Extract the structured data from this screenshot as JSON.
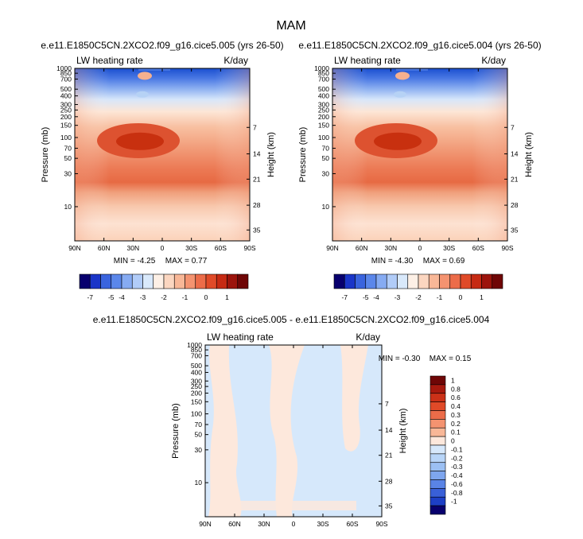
{
  "chart_data": {
    "type": "heatmap",
    "title": "MAM",
    "x_ticks": [
      "90N",
      "60N",
      "30N",
      "0",
      "30S",
      "60S",
      "90S"
    ],
    "y_ticks": [
      "10",
      "30",
      "50",
      "70",
      "100",
      "150",
      "200",
      "250",
      "300",
      "400",
      "500",
      "700",
      "850",
      "1000"
    ],
    "y_right_ticks": [
      "35",
      "28",
      "21",
      "14",
      "7"
    ],
    "y_label": "Pressure (mb)",
    "y_right_label": "Height (km)",
    "panels": [
      {
        "subtitle": "e.e11.E1850C5CN.2XCO2.f09_g16.cice5.005 (yrs 26-50)",
        "field_label": "LW heating rate",
        "units": "K/day",
        "min_label": "MIN = -4.25",
        "max_label": "MAX =  0.77",
        "min": -4.25,
        "max": 0.77
      },
      {
        "subtitle": "e.e11.E1850C5CN.2XCO2.f09_g16.cice5.004 (yrs 26-50)",
        "field_label": "LW heating rate",
        "units": "K/day",
        "min_label": "MIN = -4.30",
        "max_label": "MAX =  0.69",
        "min": -4.3,
        "max": 0.69
      },
      {
        "subtitle": "e.e11.E1850C5CN.2XCO2.f09_g16.cice5.005 - e.e11.E1850C5CN.2XCO2.f09_g16.cice5.004",
        "field_label": "LW heating rate",
        "units": "K/day",
        "min_label": "MIN = -0.30",
        "max_label": "MAX =  0.15",
        "min": -0.3,
        "max": 0.15
      }
    ],
    "colorbar_top": {
      "tick_labels": [
        "-7",
        "-5",
        "-4",
        "-3",
        "-2",
        "-1",
        "0",
        "1"
      ],
      "colors": [
        "#08006e",
        "#1a35c8",
        "#3a64de",
        "#5b87ea",
        "#86abf2",
        "#b1ccf8",
        "#d9e9fb",
        "#fdf0e6",
        "#fbd6c0",
        "#f8b797",
        "#f49370",
        "#ec6c49",
        "#e04a28",
        "#c62a13",
        "#9c140c",
        "#6f0606"
      ]
    },
    "colorbar_diff": {
      "tick_labels": [
        "1",
        "0.8",
        "0.6",
        "0.4",
        "0.3",
        "0.2",
        "0.1",
        "0",
        "-0.1",
        "-0.2",
        "-0.3",
        "-0.4",
        "-0.6",
        "-0.8",
        "-1"
      ],
      "colors": [
        "#6f0606",
        "#a7190e",
        "#cb3118",
        "#e04a28",
        "#ec6c49",
        "#f49370",
        "#f8b797",
        "#fde8dc",
        "#d6e8fb",
        "#b8d5f8",
        "#9cc0f3",
        "#7ea6ee",
        "#5a84e6",
        "#3960d8",
        "#1d3fc6",
        "#08006e"
      ]
    }
  }
}
